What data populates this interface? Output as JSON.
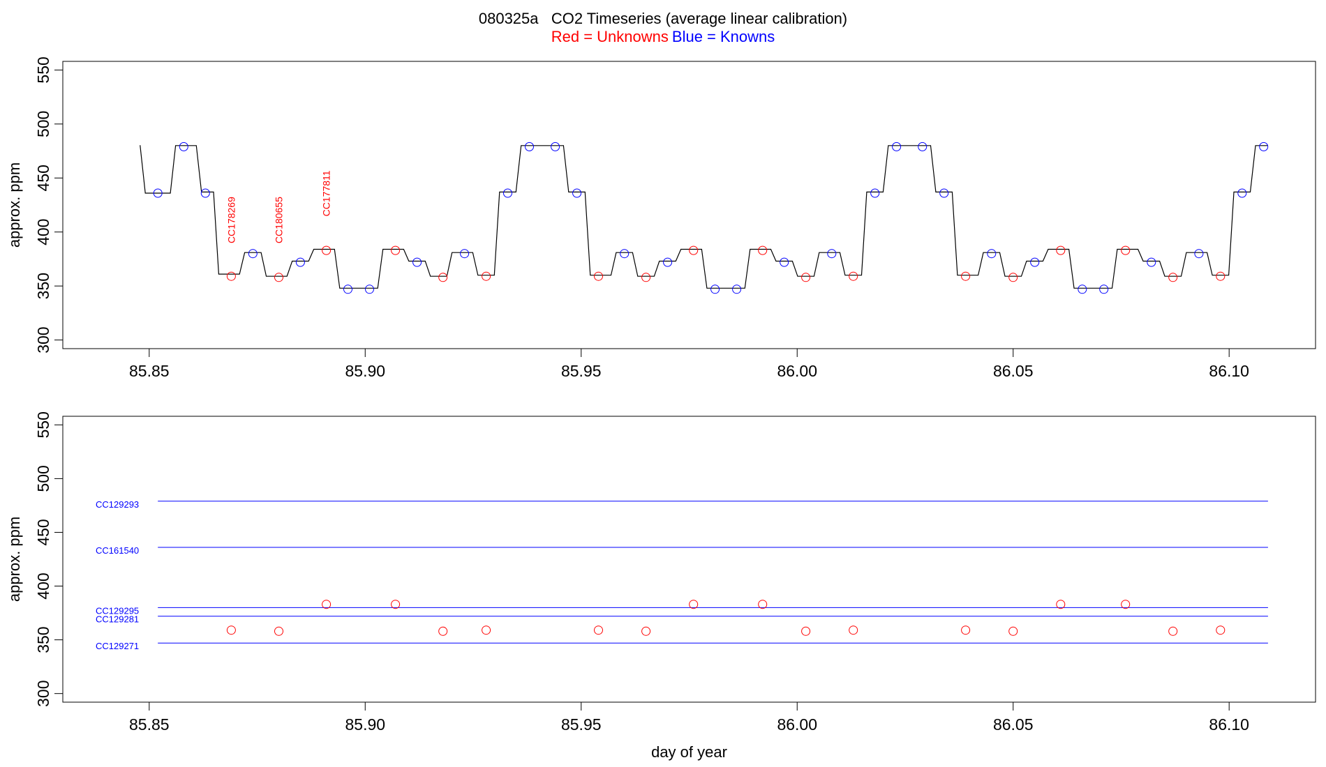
{
  "title": {
    "main": "080325a   CO2 Timeseries (average linear calibration)",
    "unknowns_legend": "Red = Unknowns",
    "knowns_legend": "Blue = Knowns"
  },
  "colors": {
    "unknown": "#ff0000",
    "known": "#0000ff",
    "trace": "#000000"
  },
  "chart_data": [
    {
      "type": "line",
      "title": "080325a   CO2 Timeseries (average linear calibration)",
      "xlabel": "",
      "ylabel": "approx. ppm",
      "xlim": [
        85.83,
        86.12
      ],
      "ylim": [
        292,
        558
      ],
      "xticks": [
        85.85,
        85.9,
        85.95,
        86.0,
        86.05,
        86.1
      ],
      "xtick_labels": [
        "85.85",
        "85.90",
        "85.95",
        "86.00",
        "86.05",
        "86.10"
      ],
      "yticks": [
        300,
        350,
        400,
        450,
        500,
        550
      ],
      "ytick_labels": [
        "300",
        "350",
        "400",
        "450",
        "500",
        "550"
      ],
      "grid": false,
      "trace_levels": [
        [
          85.848,
          480
        ],
        [
          85.8485,
          436
        ],
        [
          85.8555,
          480
        ],
        [
          85.8615,
          437
        ],
        [
          85.8655,
          361
        ],
        [
          85.8715,
          381
        ],
        [
          85.8765,
          359
        ],
        [
          85.8825,
          373
        ],
        [
          85.8875,
          384
        ],
        [
          85.8935,
          348
        ],
        [
          85.9035,
          384
        ],
        [
          85.9095,
          373
        ],
        [
          85.9145,
          359
        ],
        [
          85.9195,
          381
        ],
        [
          85.9255,
          360
        ],
        [
          85.9305,
          437
        ],
        [
          85.9355,
          480
        ],
        [
          85.9465,
          437
        ],
        [
          85.9515,
          360
        ],
        [
          85.9575,
          381
        ],
        [
          85.9625,
          359
        ],
        [
          85.9675,
          373
        ],
        [
          85.9725,
          384
        ],
        [
          85.9785,
          348
        ],
        [
          85.9885,
          384
        ],
        [
          85.9945,
          373
        ],
        [
          85.9995,
          359
        ],
        [
          86.0045,
          381
        ],
        [
          86.0105,
          360
        ],
        [
          86.0155,
          437
        ],
        [
          86.0205,
          480
        ],
        [
          86.0315,
          437
        ],
        [
          86.0365,
          360
        ],
        [
          86.0425,
          381
        ],
        [
          86.0475,
          359
        ],
        [
          86.0525,
          373
        ],
        [
          86.0575,
          384
        ],
        [
          86.0635,
          348
        ],
        [
          86.0735,
          384
        ],
        [
          86.0795,
          373
        ],
        [
          86.0845,
          359
        ],
        [
          86.0895,
          381
        ],
        [
          86.0955,
          360
        ],
        [
          86.1005,
          437
        ],
        [
          86.1055,
          480
        ]
      ],
      "trace_end": 86.109,
      "series": [
        {
          "name": "Knowns",
          "color": "#0000ff",
          "x": [
            85.852,
            85.858,
            85.863,
            85.874,
            85.885,
            85.896,
            85.901,
            85.912,
            85.923,
            85.933,
            85.938,
            85.944,
            85.949,
            85.96,
            85.97,
            85.981,
            85.986,
            85.997,
            86.008,
            86.018,
            86.023,
            86.029,
            86.034,
            86.045,
            86.055,
            86.066,
            86.071,
            86.082,
            86.093,
            86.103,
            86.108
          ],
          "y": [
            436,
            479,
            436,
            380,
            372,
            347,
            347,
            372,
            380,
            436,
            479,
            479,
            436,
            380,
            372,
            347,
            347,
            372,
            380,
            436,
            479,
            479,
            436,
            380,
            372,
            347,
            347,
            372,
            380,
            436,
            479
          ]
        },
        {
          "name": "Unknowns",
          "color": "#ff0000",
          "x": [
            85.869,
            85.88,
            85.891,
            85.907,
            85.918,
            85.928,
            85.954,
            85.965,
            85.976,
            85.992,
            86.002,
            86.013,
            86.039,
            86.05,
            86.061,
            86.076,
            86.087,
            86.098
          ],
          "y": [
            359,
            358,
            383,
            383,
            358,
            359,
            359,
            358,
            383,
            383,
            358,
            359,
            359,
            358,
            383,
            383,
            358,
            359
          ]
        }
      ],
      "annotations": [
        {
          "x": 85.869,
          "y": 383,
          "text": "CC178269"
        },
        {
          "x": 85.88,
          "y": 383,
          "text": "CC180655"
        },
        {
          "x": 85.891,
          "y": 408,
          "text": "CC177811"
        }
      ]
    },
    {
      "type": "scatter",
      "title": "",
      "xlabel": "day of year",
      "ylabel": "approx. ppm",
      "xlim": [
        85.83,
        86.12
      ],
      "ylim": [
        292,
        558
      ],
      "xticks": [
        85.85,
        85.9,
        85.95,
        86.0,
        86.05,
        86.1
      ],
      "xtick_labels": [
        "85.85",
        "85.90",
        "85.95",
        "86.00",
        "86.05",
        "86.10"
      ],
      "yticks": [
        300,
        350,
        400,
        450,
        500,
        550
      ],
      "ytick_labels": [
        "300",
        "350",
        "400",
        "450",
        "500",
        "550"
      ],
      "grid": false,
      "reference_lines": [
        {
          "name": "CC129293",
          "value": 479,
          "x_start": 85.852,
          "x_end": 86.109
        },
        {
          "name": "CC161540",
          "value": 436,
          "x_start": 85.852,
          "x_end": 86.109
        },
        {
          "name": "CC129295",
          "value": 380,
          "x_start": 85.852,
          "x_end": 86.109
        },
        {
          "name": "CC129281",
          "value": 372,
          "x_start": 85.852,
          "x_end": 86.109
        },
        {
          "name": "CC129271",
          "value": 347,
          "x_start": 85.852,
          "x_end": 86.109
        }
      ],
      "series": [
        {
          "name": "Unknowns",
          "color": "#ff0000",
          "x": [
            85.869,
            85.88,
            85.891,
            85.907,
            85.918,
            85.928,
            85.954,
            85.965,
            85.976,
            85.992,
            86.002,
            86.013,
            86.039,
            86.05,
            86.061,
            86.076,
            86.087,
            86.098
          ],
          "y": [
            359,
            358,
            383,
            383,
            358,
            359,
            359,
            358,
            383,
            383,
            358,
            359,
            359,
            358,
            383,
            383,
            358,
            359
          ]
        }
      ]
    }
  ]
}
